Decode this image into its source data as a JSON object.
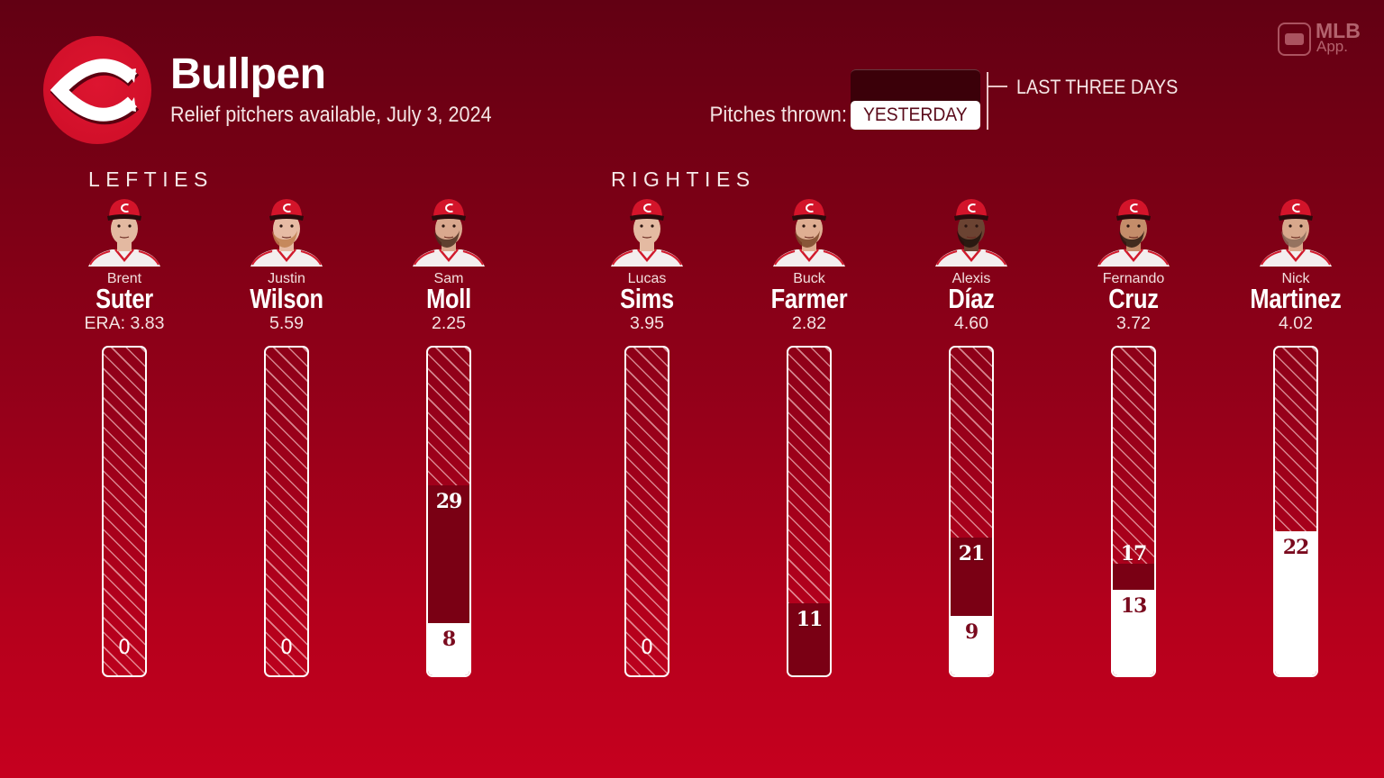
{
  "header": {
    "title": "Bullpen",
    "subtitle": "Relief pitchers available, July 3, 2024",
    "team_logo_icon": "reds-c-logo-icon",
    "brand": {
      "icon": "mlb-batter-logo-icon",
      "line1": "MLB",
      "line2": "App."
    }
  },
  "legend": {
    "label": "Pitches thrown:",
    "yesterday": "YESTERDAY",
    "last_three_days": "LAST THREE DAYS"
  },
  "groups": [
    {
      "label": "LEFTIES"
    },
    {
      "label": "RIGHTIES"
    }
  ],
  "colors": {
    "background_top": "#620013",
    "background_bottom": "#c6001f",
    "logo_red": "#d2102a",
    "last_three_days": "#7a0014",
    "legend_last_three_days": "#3b0009",
    "yesterday": "#ffffff",
    "label_on_white": "#7a0a1e"
  },
  "players": [
    {
      "first": "Brent",
      "last": "Suter",
      "era": "ERA: 3.83",
      "group": "LEFTIES",
      "headshot": {
        "skin": "#e3b9a1",
        "beard": null
      }
    },
    {
      "first": "Justin",
      "last": "Wilson",
      "era": "5.59",
      "group": "LEFTIES",
      "headshot": {
        "skin": "#e7bba4",
        "beard": "#c08050"
      }
    },
    {
      "first": "Sam",
      "last": "Moll",
      "era": "2.25",
      "group": "LEFTIES",
      "headshot": {
        "skin": "#d9a88e",
        "beard": "#4a2e1e"
      }
    },
    {
      "first": "Lucas",
      "last": "Sims",
      "era": "3.95",
      "group": "RIGHTIES",
      "headshot": {
        "skin": "#e4baa2",
        "beard": null
      }
    },
    {
      "first": "Buck",
      "last": "Farmer",
      "era": "2.82",
      "group": "RIGHTIES",
      "headshot": {
        "skin": "#dfae92",
        "beard": "#7a4628"
      }
    },
    {
      "first": "Alexis",
      "last": "Díaz",
      "era": "4.60",
      "group": "RIGHTIES",
      "headshot": {
        "skin": "#6b4332",
        "beard": "#1e120c"
      }
    },
    {
      "first": "Fernando",
      "last": "Cruz",
      "era": "3.72",
      "group": "RIGHTIES",
      "headshot": {
        "skin": "#c48d6a",
        "beard": "#2a1a10"
      }
    },
    {
      "first": "Nick",
      "last": "Martinez",
      "era": "4.02",
      "group": "RIGHTIES",
      "headshot": {
        "skin": "#d8a88c",
        "beard": "#8a6a58"
      }
    }
  ],
  "chart_data": {
    "type": "bar",
    "title": "Bullpen",
    "subtitle": "Relief pitchers available, July 3, 2024",
    "xlabel": "",
    "ylabel": "Pitches thrown",
    "categories": [
      "Brent Suter",
      "Justin Wilson",
      "Sam Moll",
      "Lucas Sims",
      "Buck Farmer",
      "Alexis Díaz",
      "Fernando Cruz",
      "Nick Martinez"
    ],
    "groups": {
      "LEFTIES": [
        "Brent Suter",
        "Justin Wilson",
        "Sam Moll"
      ],
      "RIGHTIES": [
        "Lucas Sims",
        "Buck Farmer",
        "Alexis Díaz",
        "Fernando Cruz",
        "Nick Martinez"
      ]
    },
    "series": [
      {
        "name": "LAST THREE DAYS",
        "values": [
          0,
          0,
          29,
          0,
          11,
          21,
          17,
          22
        ]
      },
      {
        "name": "YESTERDAY",
        "values": [
          0,
          0,
          8,
          0,
          0,
          9,
          13,
          22
        ]
      }
    ],
    "era": [
      3.83,
      5.59,
      2.25,
      3.95,
      2.82,
      4.6,
      3.72,
      4.02
    ],
    "ylim": [
      0,
      50
    ],
    "orientation": "vertical",
    "overlay": true,
    "grid": false,
    "legend_position": "top-right"
  }
}
